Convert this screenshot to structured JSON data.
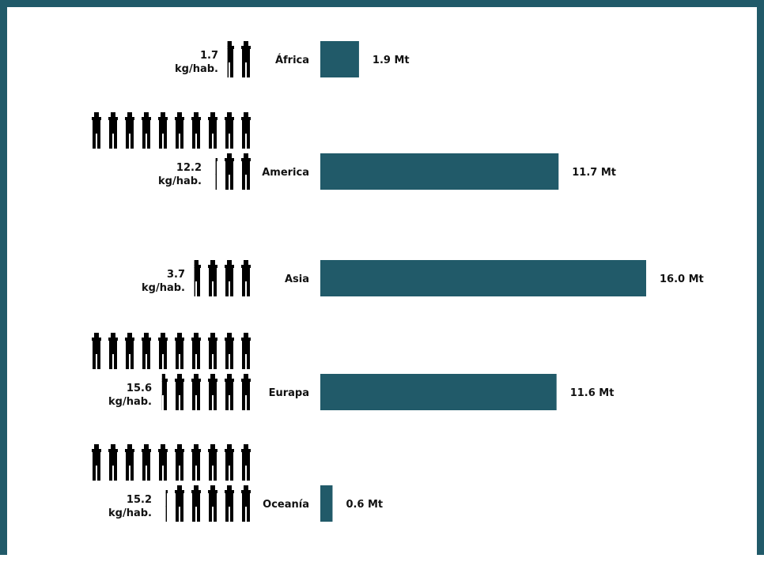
{
  "chart_data": {
    "type": "bar",
    "orientation": "horizontal",
    "categories": [
      "África",
      "America",
      "Asia",
      "Eurapa",
      "Oceanía"
    ],
    "values": [
      1.9,
      11.7,
      16.0,
      11.6,
      0.6
    ],
    "value_labels": [
      "1.9 Mt",
      "11.7 Mt",
      "16.0 Mt",
      "11.6 Mt",
      "0.6 Mt"
    ],
    "per_capita": [
      1.7,
      12.2,
      3.7,
      15.6,
      15.2
    ],
    "per_capita_value_labels": [
      "1.7",
      "12.2",
      "3.7",
      "15.6",
      "15.2"
    ],
    "per_capita_unit": "kg/hab.",
    "per_capita_icon": "person-icon",
    "xlim": [
      0,
      16.0
    ],
    "grid": false,
    "bar_color": "#215a69",
    "icon_color": "#000000"
  }
}
